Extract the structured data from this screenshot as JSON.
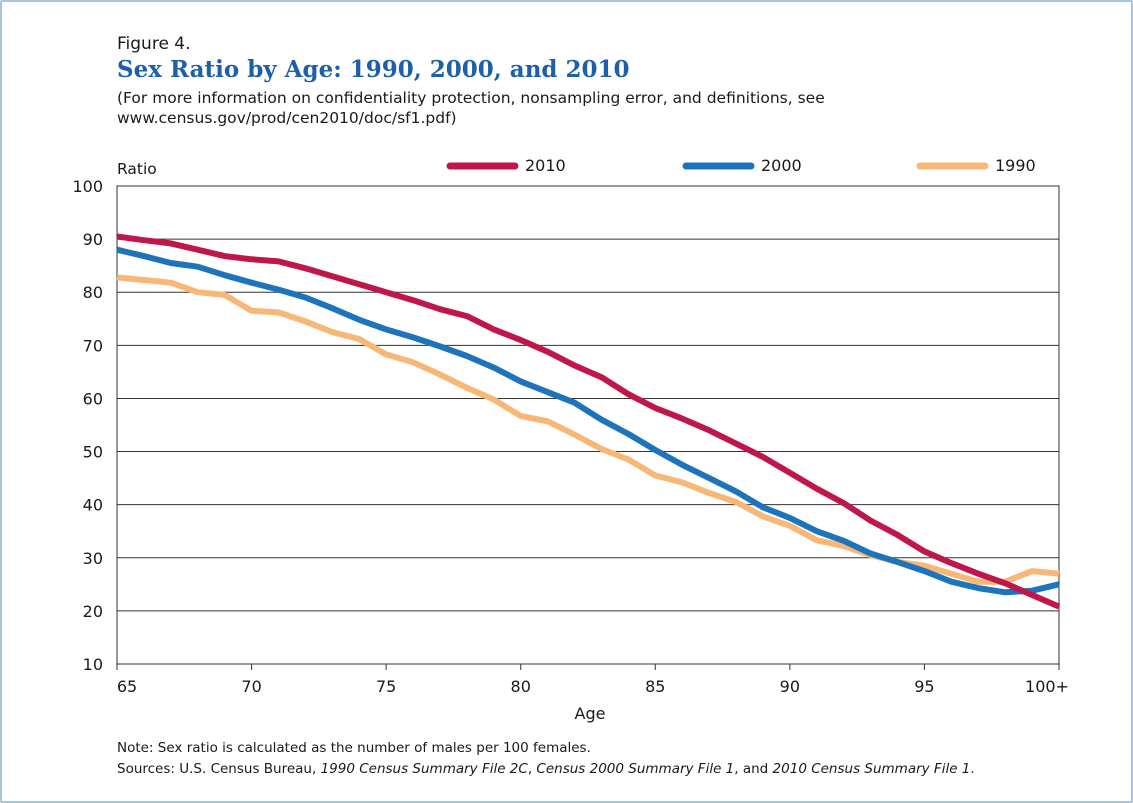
{
  "figure": {
    "label": "Figure 4.",
    "title": "Sex Ratio by Age: 1990, 2000, and 2010",
    "subtitle_line1": "(For more information on confidentiality protection, nonsampling error, and definitions, see",
    "subtitle_line2": "www.census.gov/prod/cen2010/doc/sf1.pdf)"
  },
  "notes": {
    "note": "Note: Sex ratio is calculated as the number of males per 100 females.",
    "sources_prefix": "Sources: U.S. Census Bureau, ",
    "source_1990": "1990 Census Summary File 2C",
    "sep1": ", ",
    "source_2000": "Census 2000 Summary File 1",
    "sep2": ", and ",
    "source_2010": "2010 Census Summary File 1",
    "end": "."
  },
  "chart_data": {
    "type": "line",
    "ylabel": "Ratio",
    "xlabel": "Age",
    "ylim": [
      10,
      100
    ],
    "xlim": [
      65,
      100
    ],
    "yticks": [
      10,
      20,
      30,
      40,
      50,
      60,
      70,
      80,
      90,
      100
    ],
    "xticks": [
      65,
      70,
      75,
      80,
      85,
      90,
      95,
      100
    ],
    "xtick_labels": [
      "65",
      "70",
      "75",
      "80",
      "85",
      "90",
      "95",
      "100+"
    ],
    "grid": true,
    "legend_position": "top",
    "x": [
      65,
      66,
      67,
      68,
      69,
      70,
      71,
      72,
      73,
      74,
      75,
      76,
      77,
      78,
      79,
      80,
      81,
      82,
      83,
      84,
      85,
      86,
      87,
      88,
      89,
      90,
      91,
      92,
      93,
      94,
      95,
      96,
      97,
      98,
      99,
      100
    ],
    "series": [
      {
        "name": "2010",
        "color": "#c0174a",
        "values": [
          90.5,
          89.8,
          89.2,
          88.0,
          86.8,
          86.2,
          85.8,
          84.5,
          83.0,
          81.5,
          80.0,
          78.5,
          76.8,
          75.5,
          73.0,
          71.0,
          68.8,
          66.2,
          64.0,
          60.8,
          58.2,
          56.2,
          54.0,
          51.5,
          49.0,
          46.0,
          43.0,
          40.3,
          37.0,
          34.3,
          31.2,
          29.0,
          27.0,
          25.2,
          23.0,
          20.8
        ]
      },
      {
        "name": "2000",
        "color": "#1e74bb",
        "values": [
          88.0,
          86.8,
          85.5,
          84.8,
          83.2,
          81.8,
          80.5,
          79.0,
          77.0,
          74.8,
          73.0,
          71.5,
          69.8,
          68.0,
          65.8,
          63.2,
          61.2,
          59.2,
          56.0,
          53.3,
          50.3,
          47.5,
          45.0,
          42.5,
          39.5,
          37.5,
          35.0,
          33.2,
          30.8,
          29.2,
          27.5,
          25.5,
          24.3,
          23.5,
          23.8,
          25.0
        ]
      },
      {
        "name": "1990",
        "color": "#f7b877",
        "values": [
          82.8,
          82.3,
          81.8,
          80.0,
          79.5,
          76.5,
          76.2,
          74.5,
          72.5,
          71.2,
          68.3,
          66.8,
          64.5,
          62.0,
          59.8,
          56.7,
          55.7,
          53.2,
          50.5,
          48.5,
          45.5,
          44.2,
          42.2,
          40.5,
          37.8,
          36.0,
          33.3,
          32.2,
          30.5,
          29.2,
          28.5,
          27.0,
          25.5,
          25.5,
          27.5,
          27.0
        ]
      }
    ]
  }
}
